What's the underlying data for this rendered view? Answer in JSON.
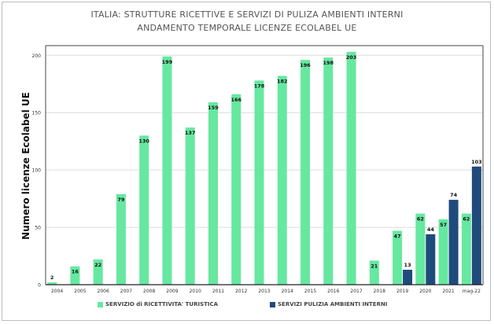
{
  "chart_data": {
    "type": "bar",
    "title": "ITALIA:  STRUTTURE RICETTIVE E SERVIZI DI PULIZA AMBIENTI INTERNI",
    "subtitle": "ANDAMENTO TEMPORALE LICENZE ECOLABEL UE",
    "xlabel": "",
    "ylabel": "Numero licenze Ecolabel UE",
    "ylim": [
      0,
      205
    ],
    "yticks": [
      0,
      50,
      100,
      150,
      200
    ],
    "grid": true,
    "legend_position": "bottom",
    "categories": [
      "2004",
      "2005",
      "2006",
      "2007",
      "2008",
      "2009",
      "2010",
      "2011",
      "2012",
      "2013",
      "2014",
      "2015",
      "2016",
      "2017",
      "2018",
      "2019",
      "2020",
      "2021",
      "mag-22"
    ],
    "series": [
      {
        "name": "SERVIZIO di RICETTIVITA' TURISTICA",
        "color": "#66e8a0",
        "values": [
          2,
          16,
          22,
          79,
          130,
          199,
          137,
          159,
          166,
          178,
          182,
          196,
          198,
          203,
          21,
          47,
          62,
          57,
          62
        ]
      },
      {
        "name": "SERVIZI PULIZIA AMBIENTI INTERNI",
        "color": "#1f4a7c",
        "values": [
          null,
          null,
          null,
          null,
          null,
          null,
          null,
          null,
          null,
          null,
          null,
          null,
          null,
          null,
          null,
          13,
          44,
          74,
          103
        ]
      }
    ]
  }
}
